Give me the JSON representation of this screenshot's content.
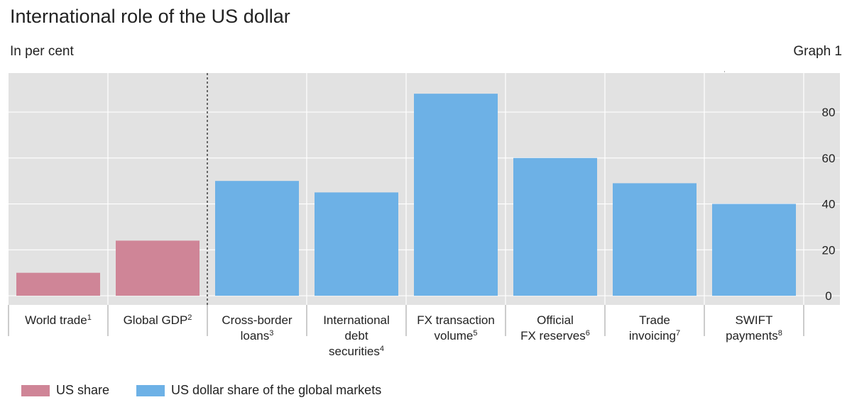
{
  "header": {
    "title": "International role of the US dollar",
    "unit": "In per cent",
    "graph_no": "Graph 1"
  },
  "legend": {
    "items": [
      {
        "label": "US share",
        "color": "#cf8597"
      },
      {
        "label": "US dollar share of the global markets",
        "color": "#6db1e6"
      }
    ]
  },
  "colors": {
    "plot_bg": "#e2e2e2",
    "grid": "#ffffff",
    "us_share": "#cf8597",
    "usd_share": "#6db1e6"
  },
  "chart_data": {
    "type": "bar",
    "title": "International role of the US dollar",
    "ylabel": "In per cent",
    "ylim": [
      -4,
      97
    ],
    "yticks": [
      0,
      20,
      40,
      60,
      80
    ],
    "y_axis_side": "right",
    "grid": true,
    "categories": [
      {
        "lines": [
          "World trade"
        ],
        "sup": "1"
      },
      {
        "lines": [
          "Global GDP"
        ],
        "sup": "2"
      },
      {
        "lines": [
          "Cross-border",
          "loans"
        ],
        "sup": "3"
      },
      {
        "lines": [
          "International",
          "debt",
          "securities"
        ],
        "sup": "4"
      },
      {
        "lines": [
          "FX transaction",
          "volume"
        ],
        "sup": "5"
      },
      {
        "lines": [
          "Official",
          "FX reserves"
        ],
        "sup": "6"
      },
      {
        "lines": [
          "Trade",
          "invoicing"
        ],
        "sup": "7"
      },
      {
        "lines": [
          "SWIFT",
          "payments"
        ],
        "sup": "8"
      }
    ],
    "series": [
      {
        "name": "US share",
        "values": [
          10,
          24,
          null,
          null,
          null,
          null,
          null,
          null
        ]
      },
      {
        "name": "US dollar share of the global markets",
        "values": [
          null,
          null,
          50,
          45,
          88,
          60,
          49,
          40
        ]
      }
    ],
    "separator_after_category": 2
  }
}
